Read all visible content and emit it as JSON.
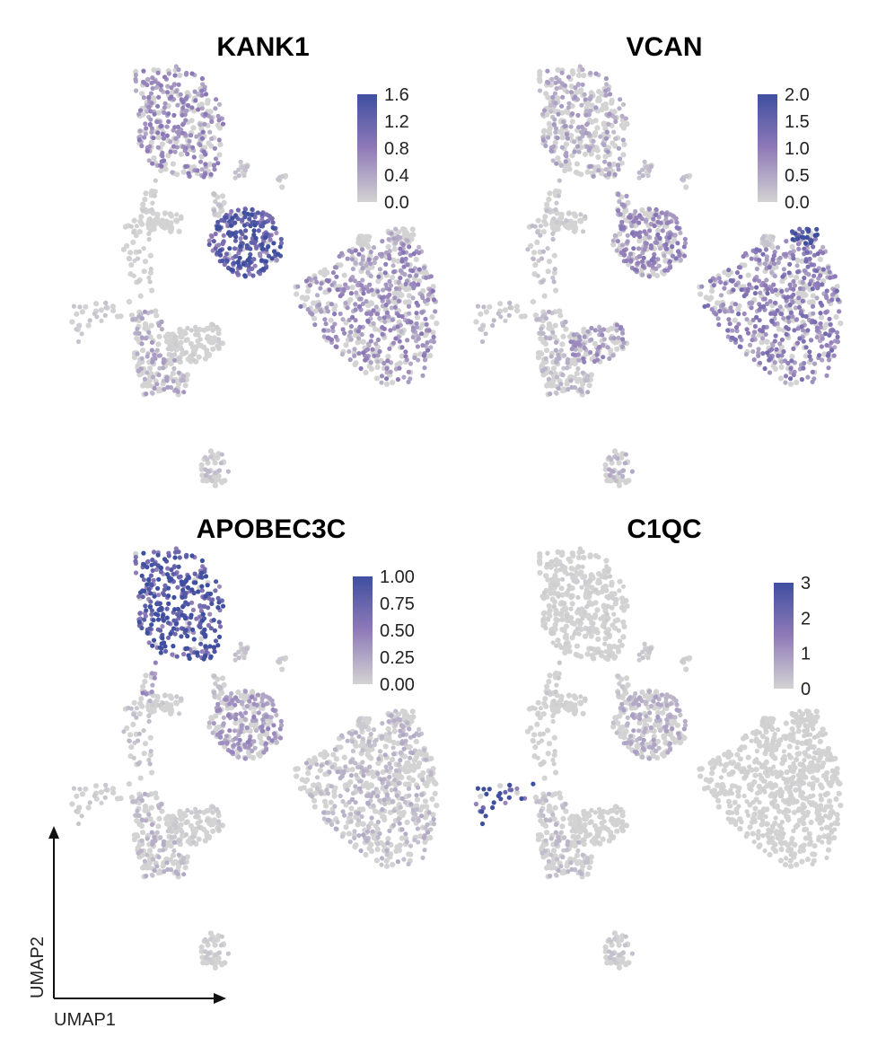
{
  "chart_data": [
    {
      "type": "scatter",
      "plot": "UMAP feature plot",
      "title": "KANK1",
      "colorbar": {
        "ticks": [
          "1.6",
          "1.2",
          "0.8",
          "0.4",
          "0.0"
        ],
        "range": [
          0,
          1.6
        ]
      },
      "colors": {
        "low": "#d3d3d3",
        "mid": "#8f7ab8",
        "high": "#3f4fa0"
      },
      "cluster_expression": {
        "c1": 0.55,
        "c2": 0.05,
        "c3": 0.02,
        "c4": 0.05,
        "c5": 1.15,
        "c6": 0.1,
        "c7": 0.55,
        "c8": 0.02,
        "c9": 0.3,
        "c10": 0.35,
        "c11": 0.05,
        "c12": 0.15,
        "c13": 0.15,
        "c14": 0.1,
        "c15": 0.15
      }
    },
    {
      "type": "scatter",
      "plot": "UMAP feature plot",
      "title": "VCAN",
      "colorbar": {
        "ticks": [
          "2.0",
          "1.5",
          "1.0",
          "0.5",
          "0.0"
        ],
        "range": [
          0,
          2.0
        ]
      },
      "colors": {
        "low": "#d3d3d3",
        "mid": "#8f7ab8",
        "high": "#3f4fa0"
      },
      "cluster_expression": {
        "c1": 0.45,
        "c2": 0.15,
        "c3": 0.1,
        "c4": 0.2,
        "c5": 0.75,
        "c6": 0.2,
        "c7": 0.85,
        "c8": 0.15,
        "c9": 1.7,
        "c10": 0.3,
        "c11": 0.6,
        "c12": 0.3,
        "c13": 0.25,
        "c14": 0.2,
        "c15": 0.6
      }
    },
    {
      "type": "scatter",
      "plot": "UMAP feature plot",
      "title": "APOBEC3C",
      "colorbar": {
        "ticks": [
          "1.00",
          "0.75",
          "0.50",
          "0.25",
          "0.00"
        ],
        "range": [
          0,
          1.0
        ]
      },
      "colors": {
        "low": "#d3d3d3",
        "mid": "#8f7ab8",
        "high": "#3f4fa0"
      },
      "cluster_expression": {
        "c1": 0.75,
        "c2": 0.3,
        "c3": 0.05,
        "c4": 0.1,
        "c5": 0.3,
        "c6": 0.05,
        "c7": 0.15,
        "c8": 0.05,
        "c9": 0.15,
        "c10": 0.15,
        "c11": 0.05,
        "c12": 0.05,
        "c13": 0.1,
        "c14": 0.05,
        "c15": 0.1
      }
    },
    {
      "type": "scatter",
      "plot": "UMAP feature plot",
      "title": "C1QC",
      "colorbar": {
        "ticks": [
          "3",
          "2",
          "1",
          "0"
        ],
        "range": [
          0,
          3
        ]
      },
      "colors": {
        "low": "#d3d3d3",
        "mid": "#8f7ab8",
        "high": "#3f4fa0"
      },
      "cluster_expression": {
        "c1": 0.08,
        "c2": 0.15,
        "c3": 0.08,
        "c4": 0.05,
        "c5": 0.6,
        "c6": 2.5,
        "c7": 0.05,
        "c8": 0.05,
        "c9": 0.05,
        "c10": 0.35,
        "c11": 0.05,
        "c12": 0.2,
        "c13": 0.2,
        "c14": 0.1,
        "c15": 0.2
      }
    }
  ],
  "axes": {
    "x_label": "UMAP1",
    "y_label": "UMAP2"
  }
}
